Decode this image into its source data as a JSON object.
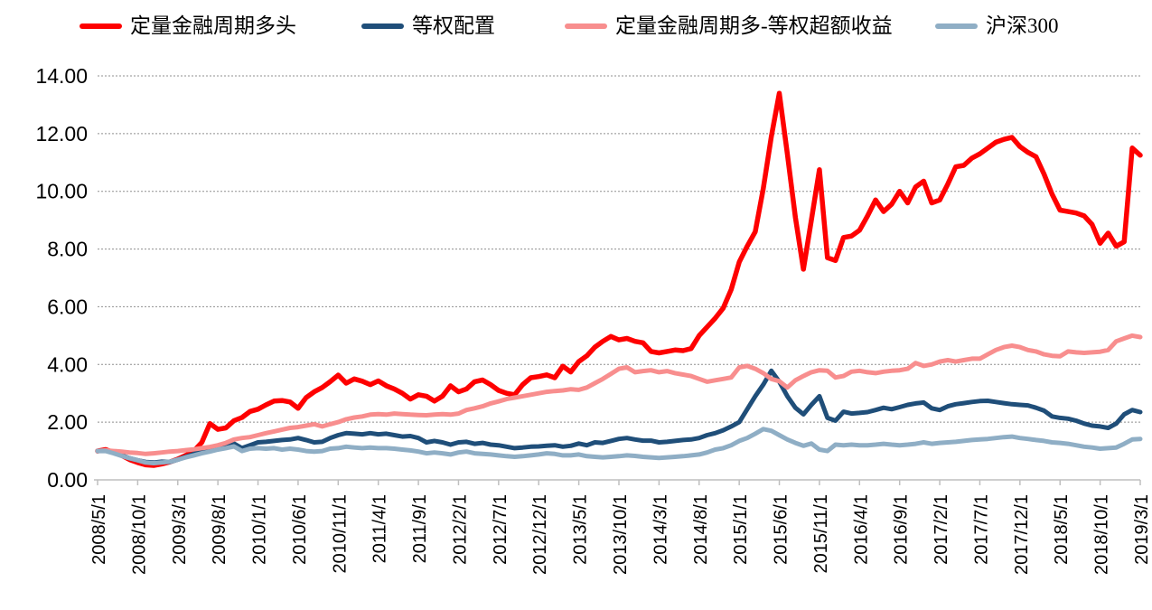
{
  "legend": {
    "items": [
      {
        "label": "定量金融周期多头",
        "color": "#FE0000"
      },
      {
        "label": "等权配置",
        "color": "#1F4E79"
      },
      {
        "label": "定量金融周期多-等权超额收益",
        "color": "#F88E8E"
      },
      {
        "label": "沪深300",
        "color": "#8FAEC5"
      }
    ]
  },
  "colors": {
    "grid": "#8F8F8F",
    "axis": "#BFBFBF",
    "text": "#000000",
    "background": "#FFFFFF"
  },
  "chart_data": {
    "type": "line",
    "title": "",
    "xlabel": "",
    "ylabel": "",
    "ylim": [
      0,
      14
    ],
    "y_tick_step": 2,
    "y_tick_labels": [
      "0.00",
      "2.00",
      "4.00",
      "6.00",
      "8.00",
      "10.00",
      "12.00",
      "14.00"
    ],
    "x_start": "2008/5/1",
    "x_step_months": 1,
    "x_tick_every_points": 5,
    "x_tick_labels": [
      "2008/5/1",
      "2008/10/1",
      "2009/3/1",
      "2009/8/1",
      "2010/1/1",
      "2010/6/1",
      "2010/11/1",
      "2011/4/1",
      "2011/9/1",
      "2012/2/1",
      "2012/7/1",
      "2012/12/1",
      "2013/5/1",
      "2013/10/1",
      "2014/3/1",
      "2014/8/1",
      "2015/1/1",
      "2015/6/1",
      "2015/11/1",
      "2016/4/1",
      "2016/9/1",
      "2017/2/1",
      "2017/7/1",
      "2017/12/1",
      "2018/5/1",
      "2018/10/1",
      "2019/3/1"
    ],
    "grid": "horizontal-dashed",
    "legend_position": "top",
    "series": [
      {
        "name": "定量金融周期多头",
        "color": "#FE0000",
        "width": 5.5,
        "values": [
          1.0,
          1.05,
          0.95,
          0.85,
          0.7,
          0.6,
          0.52,
          0.5,
          0.55,
          0.62,
          0.72,
          0.85,
          1.0,
          1.3,
          1.95,
          1.75,
          1.8,
          2.05,
          2.16,
          2.37,
          2.45,
          2.6,
          2.73,
          2.75,
          2.7,
          2.48,
          2.85,
          3.05,
          3.2,
          3.4,
          3.63,
          3.35,
          3.5,
          3.42,
          3.3,
          3.43,
          3.26,
          3.15,
          3.0,
          2.8,
          2.95,
          2.9,
          2.73,
          2.9,
          3.26,
          3.05,
          3.15,
          3.4,
          3.46,
          3.3,
          3.1,
          3.0,
          2.95,
          3.3,
          3.54,
          3.58,
          3.64,
          3.54,
          3.94,
          3.74,
          4.1,
          4.3,
          4.6,
          4.8,
          4.97,
          4.85,
          4.9,
          4.8,
          4.75,
          4.45,
          4.4,
          4.45,
          4.5,
          4.48,
          4.55,
          5.0,
          5.3,
          5.6,
          5.95,
          6.6,
          7.55,
          8.1,
          8.6,
          10.1,
          11.9,
          13.4,
          11.3,
          9.1,
          7.3,
          9.0,
          10.75,
          7.7,
          7.6,
          8.4,
          8.45,
          8.65,
          9.15,
          9.7,
          9.3,
          9.55,
          10.0,
          9.6,
          10.15,
          10.35,
          9.6,
          9.7,
          10.25,
          10.85,
          10.9,
          11.15,
          11.3,
          11.5,
          11.7,
          11.8,
          11.87,
          11.55,
          11.35,
          11.2,
          10.6,
          9.9,
          9.35,
          9.3,
          9.25,
          9.15,
          8.85,
          8.2,
          8.55,
          8.1,
          8.25,
          11.5,
          11.25
        ]
      },
      {
        "name": "等权配置",
        "color": "#1F4E79",
        "width": 5,
        "values": [
          1.0,
          1.02,
          0.95,
          0.85,
          0.75,
          0.68,
          0.62,
          0.6,
          0.63,
          0.62,
          0.7,
          0.8,
          0.9,
          1.0,
          1.08,
          1.15,
          1.2,
          1.26,
          1.1,
          1.2,
          1.3,
          1.32,
          1.35,
          1.38,
          1.4,
          1.45,
          1.38,
          1.3,
          1.32,
          1.45,
          1.55,
          1.62,
          1.6,
          1.58,
          1.62,
          1.58,
          1.6,
          1.55,
          1.5,
          1.52,
          1.45,
          1.3,
          1.35,
          1.3,
          1.22,
          1.3,
          1.32,
          1.25,
          1.28,
          1.22,
          1.2,
          1.15,
          1.1,
          1.12,
          1.15,
          1.16,
          1.18,
          1.2,
          1.15,
          1.18,
          1.26,
          1.2,
          1.3,
          1.28,
          1.35,
          1.42,
          1.45,
          1.4,
          1.36,
          1.36,
          1.3,
          1.32,
          1.35,
          1.38,
          1.4,
          1.45,
          1.55,
          1.62,
          1.72,
          1.85,
          2.0,
          2.45,
          2.9,
          3.3,
          3.78,
          3.4,
          2.9,
          2.5,
          2.27,
          2.6,
          2.9,
          2.15,
          2.05,
          2.36,
          2.3,
          2.32,
          2.35,
          2.42,
          2.5,
          2.45,
          2.52,
          2.6,
          2.65,
          2.68,
          2.48,
          2.42,
          2.55,
          2.62,
          2.66,
          2.7,
          2.73,
          2.74,
          2.7,
          2.66,
          2.62,
          2.6,
          2.58,
          2.5,
          2.4,
          2.2,
          2.15,
          2.12,
          2.05,
          1.95,
          1.88,
          1.85,
          1.8,
          1.95,
          2.27,
          2.42,
          2.35
        ]
      },
      {
        "name": "定量金融周期多-等权超额收益",
        "color": "#F88E8E",
        "width": 5,
        "values": [
          1.0,
          1.02,
          1.0,
          0.98,
          0.95,
          0.93,
          0.9,
          0.92,
          0.95,
          0.98,
          1.0,
          1.03,
          1.06,
          1.1,
          1.14,
          1.2,
          1.28,
          1.4,
          1.45,
          1.48,
          1.55,
          1.62,
          1.68,
          1.74,
          1.8,
          1.83,
          1.88,
          1.93,
          1.85,
          1.93,
          2.0,
          2.1,
          2.16,
          2.2,
          2.26,
          2.28,
          2.26,
          2.3,
          2.28,
          2.26,
          2.25,
          2.24,
          2.26,
          2.28,
          2.26,
          2.3,
          2.42,
          2.48,
          2.55,
          2.65,
          2.72,
          2.8,
          2.85,
          2.9,
          2.95,
          3.0,
          3.05,
          3.08,
          3.1,
          3.14,
          3.12,
          3.2,
          3.35,
          3.5,
          3.67,
          3.85,
          3.9,
          3.73,
          3.77,
          3.8,
          3.73,
          3.77,
          3.7,
          3.65,
          3.6,
          3.5,
          3.4,
          3.45,
          3.5,
          3.55,
          3.9,
          3.95,
          3.85,
          3.7,
          3.5,
          3.42,
          3.2,
          3.45,
          3.6,
          3.73,
          3.8,
          3.78,
          3.55,
          3.6,
          3.75,
          3.78,
          3.73,
          3.7,
          3.75,
          3.78,
          3.8,
          3.85,
          4.05,
          3.95,
          4.0,
          4.1,
          4.15,
          4.1,
          4.15,
          4.2,
          4.2,
          4.35,
          4.5,
          4.6,
          4.65,
          4.6,
          4.5,
          4.45,
          4.35,
          4.3,
          4.28,
          4.45,
          4.42,
          4.4,
          4.42,
          4.44,
          4.5,
          4.8,
          4.9,
          5.0,
          4.95
        ]
      },
      {
        "name": "沪深300",
        "color": "#8FAEC5",
        "width": 5,
        "values": [
          1.0,
          1.0,
          0.92,
          0.83,
          0.75,
          0.68,
          0.6,
          0.58,
          0.6,
          0.63,
          0.7,
          0.78,
          0.85,
          0.92,
          0.98,
          1.05,
          1.1,
          1.16,
          1.0,
          1.08,
          1.1,
          1.08,
          1.1,
          1.05,
          1.08,
          1.05,
          1.0,
          0.98,
          1.0,
          1.08,
          1.1,
          1.15,
          1.12,
          1.1,
          1.12,
          1.1,
          1.1,
          1.08,
          1.05,
          1.02,
          0.98,
          0.92,
          0.95,
          0.92,
          0.88,
          0.95,
          0.98,
          0.92,
          0.9,
          0.88,
          0.85,
          0.82,
          0.8,
          0.82,
          0.85,
          0.88,
          0.92,
          0.9,
          0.85,
          0.85,
          0.88,
          0.82,
          0.8,
          0.78,
          0.8,
          0.82,
          0.85,
          0.83,
          0.8,
          0.78,
          0.76,
          0.78,
          0.8,
          0.82,
          0.85,
          0.88,
          0.95,
          1.05,
          1.1,
          1.2,
          1.35,
          1.45,
          1.6,
          1.76,
          1.7,
          1.55,
          1.4,
          1.28,
          1.18,
          1.26,
          1.05,
          1.0,
          1.22,
          1.2,
          1.22,
          1.2,
          1.2,
          1.22,
          1.25,
          1.22,
          1.2,
          1.22,
          1.25,
          1.3,
          1.25,
          1.28,
          1.3,
          1.32,
          1.35,
          1.38,
          1.4,
          1.42,
          1.45,
          1.48,
          1.5,
          1.45,
          1.42,
          1.38,
          1.35,
          1.3,
          1.28,
          1.25,
          1.2,
          1.15,
          1.12,
          1.08,
          1.1,
          1.12,
          1.25,
          1.4,
          1.42
        ]
      }
    ]
  }
}
